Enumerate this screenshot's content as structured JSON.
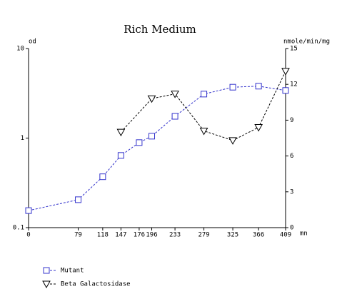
{
  "chart_data": {
    "type": "line",
    "title": "Rich Medium",
    "y_label": "od",
    "y2_label": "nmole/min/mg",
    "x_label": "mn",
    "xlim": [
      0,
      409
    ],
    "xticks": [
      0,
      79,
      118,
      147,
      176,
      196,
      233,
      279,
      325,
      366,
      409
    ],
    "ylim": [
      0.1,
      10
    ],
    "ylog": true,
    "yticks": [
      0.1,
      1,
      10
    ],
    "y2lim": [
      0,
      15
    ],
    "y2ticks": [
      0,
      3,
      6,
      9,
      12,
      15
    ],
    "grid": false,
    "legend": "bottom-left",
    "series": [
      {
        "name": "Mutant",
        "color": "#3333cc",
        "marker": "square",
        "x": [
          0,
          79,
          118,
          147,
          176,
          196,
          233,
          279,
          325,
          366,
          409
        ],
        "values": [
          0.155,
          0.205,
          0.37,
          0.64,
          0.89,
          1.05,
          1.75,
          3.1,
          3.7,
          3.8,
          3.4
        ]
      },
      {
        "name": "Beta Galactosidase",
        "color": "#000000",
        "marker": "triangle-down",
        "axis": "y2",
        "x": [
          147,
          196,
          233,
          279,
          325,
          366,
          409
        ],
        "values": [
          8.0,
          10.8,
          11.2,
          8.1,
          7.3,
          8.4,
          13.1
        ]
      }
    ]
  }
}
